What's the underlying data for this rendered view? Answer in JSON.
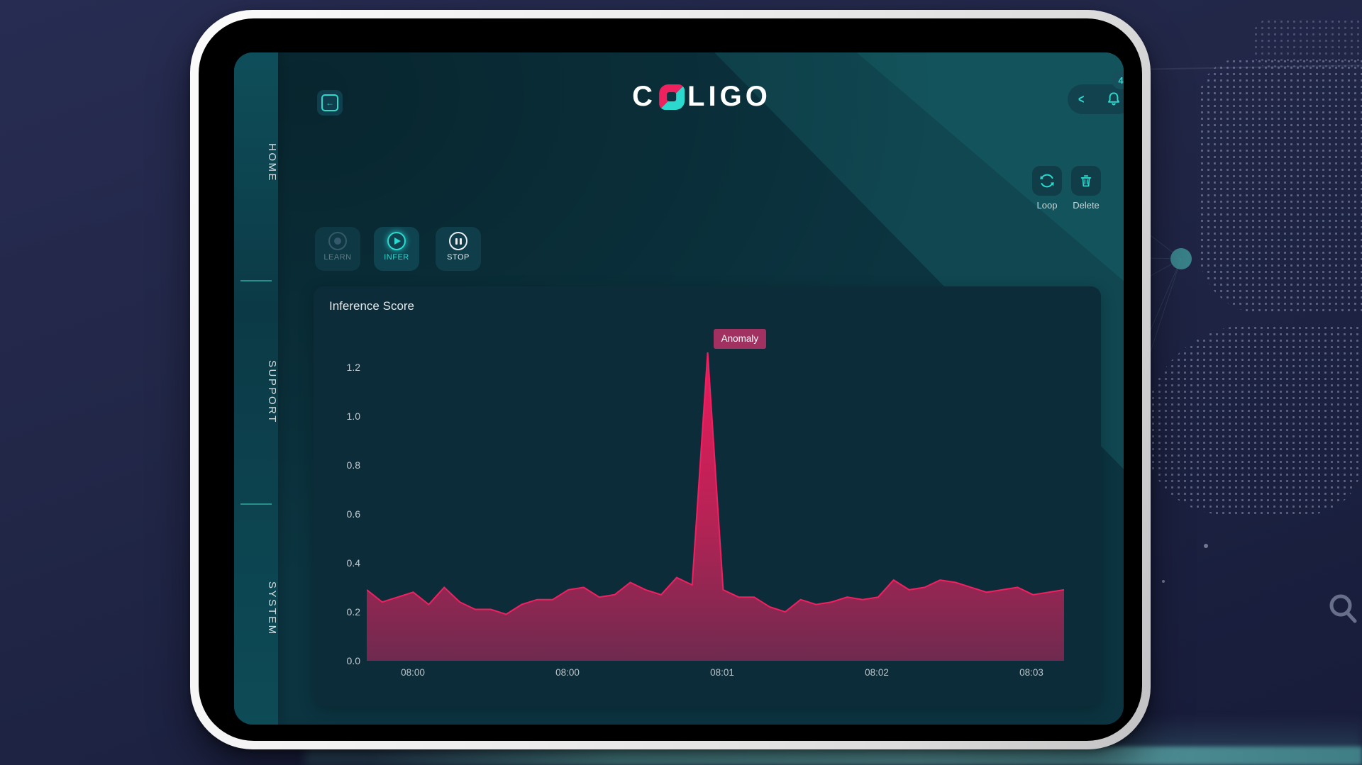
{
  "app": {
    "logo": {
      "text_left": "C",
      "text_right": "LIGO",
      "full_name": "COLIGO",
      "mark_color_top": "#f0215f",
      "mark_color_bottom": "#2bd9cf"
    },
    "nav": {
      "items": [
        {
          "label": "HOME"
        },
        {
          "label": "SUPPORT"
        },
        {
          "label": "SYSTEM"
        }
      ]
    },
    "header": {
      "notification_count": "4"
    },
    "tools": {
      "loop_label": "Loop",
      "delete_label": "Delete"
    },
    "controls": {
      "learn": {
        "label": "LEARN",
        "state": "inactive"
      },
      "infer": {
        "label": "INFER",
        "state": "active"
      },
      "stop": {
        "label": "STOP",
        "state": "available"
      }
    },
    "colors": {
      "accent_teal": "#2bd9cf",
      "series_crimson": "#e6195c",
      "anomaly_badge": "#a13160",
      "screen_bg": "#0b3440",
      "panel_bg": "#0d2c39"
    }
  },
  "chart_data": {
    "type": "area",
    "title": "Inference Score",
    "xlabel": "",
    "ylabel": "",
    "ylim": [
      0,
      1.26
    ],
    "grid": false,
    "legend": "none",
    "x_tick_labels": [
      "08:00",
      "08:00",
      "08:01",
      "08:02",
      "08:03"
    ],
    "y_ticks": [
      {
        "v": 0.0,
        "label": "0.0"
      },
      {
        "v": 0.2,
        "label": "0.2"
      },
      {
        "v": 0.4,
        "label": "0.4"
      },
      {
        "v": 0.6,
        "label": "0.6"
      },
      {
        "v": 0.8,
        "label": "0.8"
      },
      {
        "v": 1.0,
        "label": "1.0"
      },
      {
        "v": 1.2,
        "label": "1.2"
      }
    ],
    "annotation": {
      "label": "Anomaly",
      "attached_to": "peak"
    },
    "series": [
      {
        "name": "inference_score",
        "color_top": "#ea1a5c",
        "color_bottom": "#6f2a4f",
        "values": [
          0.29,
          0.24,
          0.26,
          0.28,
          0.23,
          0.3,
          0.24,
          0.21,
          0.21,
          0.19,
          0.23,
          0.25,
          0.25,
          0.29,
          0.3,
          0.26,
          0.27,
          0.32,
          0.29,
          0.27,
          0.34,
          0.31,
          1.26,
          0.29,
          0.26,
          0.26,
          0.22,
          0.2,
          0.25,
          0.23,
          0.24,
          0.26,
          0.25,
          0.26,
          0.33,
          0.29,
          0.3,
          0.33,
          0.32,
          0.3,
          0.28,
          0.29,
          0.3,
          0.27,
          0.28,
          0.29
        ]
      }
    ]
  }
}
